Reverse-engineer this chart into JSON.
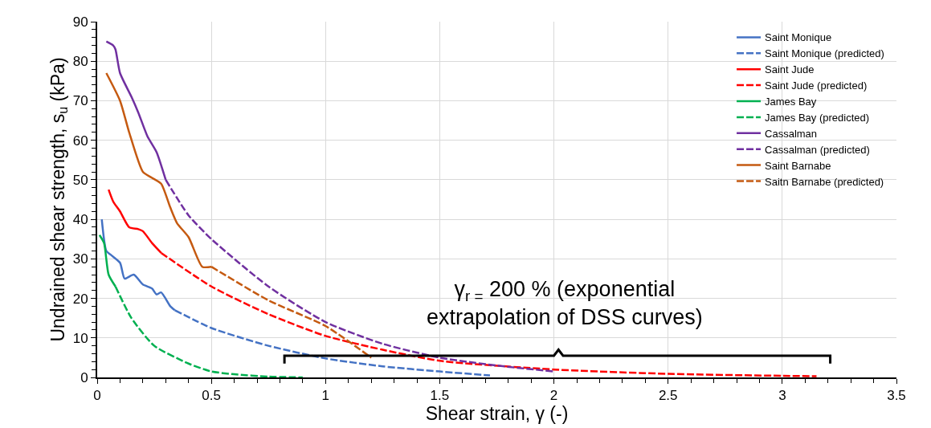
{
  "chart_data": {
    "type": "line",
    "xlabel": "Shear strain, γ (-)",
    "ylabel": "Undrained shear strength, s$_{u}$ (kPa)",
    "xlim": [
      0,
      3.5
    ],
    "xticks": [
      0,
      0.5,
      1,
      1.5,
      2,
      2.5,
      3,
      3.5
    ],
    "ylim": [
      0,
      90
    ],
    "yticks": [
      0,
      10,
      20,
      30,
      40,
      50,
      60,
      70,
      80,
      90
    ],
    "grid": true,
    "legend": "top right",
    "annotations": [
      "γ$_{r =}$ 200 % (exponential\nextrapolation of DSS curves)"
    ],
    "series": [
      {
        "name": "Saint Monique",
        "color": "#4472c4",
        "line_style": "solid",
        "x": [
          0.02,
          0.04,
          0.06,
          0.1,
          0.12,
          0.16,
          0.2,
          0.24,
          0.26,
          0.28,
          0.32,
          0.34
        ],
        "values": [
          40,
          32,
          31,
          29,
          25,
          26,
          23.5,
          22.5,
          21,
          21.5,
          18,
          17
        ]
      },
      {
        "name": "Saint Monique (predicted)",
        "color": "#4472c4",
        "line_style": "dashed",
        "x": [
          0.34,
          0.5,
          0.75,
          1.0,
          1.25,
          1.5,
          1.72
        ],
        "values": [
          17,
          12.5,
          8,
          4.8,
          2.8,
          1.5,
          0.5
        ]
      },
      {
        "name": "Saint Jude",
        "color": "#ff0000",
        "line_style": "solid",
        "x": [
          0.05,
          0.07,
          0.1,
          0.14,
          0.18,
          0.2,
          0.24,
          0.28
        ],
        "values": [
          47.5,
          44.5,
          42,
          38,
          37.5,
          37,
          34,
          31.5
        ]
      },
      {
        "name": "Saint Jude (predicted)",
        "color": "#ff0000",
        "line_style": "dashed",
        "x": [
          0.28,
          0.5,
          0.75,
          1.0,
          1.25,
          1.5,
          2.0,
          2.5,
          3.0,
          3.15
        ],
        "values": [
          31.5,
          23,
          16,
          10.5,
          7,
          4.2,
          2,
          0.9,
          0.4,
          0.3
        ]
      },
      {
        "name": "James Bay",
        "color": "#00b050",
        "line_style": "solid",
        "x": [
          0.01,
          0.03,
          0.05,
          0.08
        ],
        "values": [
          36,
          34,
          26,
          23
        ]
      },
      {
        "name": "James Bay (predicted)",
        "color": "#00b050",
        "line_style": "dashed",
        "x": [
          0.08,
          0.15,
          0.25,
          0.4,
          0.5,
          0.6,
          0.75,
          0.9
        ],
        "values": [
          23,
          15,
          8,
          3.5,
          1.5,
          0.8,
          0.2,
          0
        ]
      },
      {
        "name": "Cassalman",
        "color": "#7030a0",
        "line_style": "solid",
        "x": [
          0.04,
          0.07,
          0.08,
          0.1,
          0.15,
          0.18,
          0.22,
          0.26,
          0.3
        ],
        "values": [
          85,
          84,
          83,
          77,
          71,
          67,
          61,
          57,
          50
        ]
      },
      {
        "name": "Cassalman (predicted)",
        "color": "#7030a0",
        "line_style": "dashed",
        "x": [
          0.3,
          0.4,
          0.5,
          0.75,
          1.0,
          1.25,
          1.5,
          1.75,
          2.0
        ],
        "values": [
          50,
          41,
          35,
          23,
          14,
          8.5,
          5,
          3,
          1.5
        ]
      },
      {
        "name": "Saint Barnabe",
        "color": "#c55a11",
        "line_style": "solid",
        "x": [
          0.04,
          0.1,
          0.14,
          0.2,
          0.24,
          0.28,
          0.32,
          0.35,
          0.4,
          0.46,
          0.5
        ],
        "values": [
          77,
          70,
          62,
          52,
          50.5,
          49,
          43,
          39,
          35.5,
          28,
          28
        ]
      },
      {
        "name": "Saitn Barnabe (predicted)",
        "color": "#c55a11",
        "line_style": "dashed",
        "x": [
          0.5,
          0.75,
          1.0,
          1.2
        ],
        "values": [
          28,
          19.5,
          13,
          5
        ]
      },
      {
        "type": "line",
        "color": "#000000",
        "line_style": "solid",
        "x": [
          0.82,
          0.82,
          2.0,
          2.02,
          2.04,
          3.21,
          3.21
        ],
        "values": [
          3.5,
          5.5,
          5.5,
          7,
          5.5,
          5.5,
          3.5
        ]
      }
    ]
  }
}
